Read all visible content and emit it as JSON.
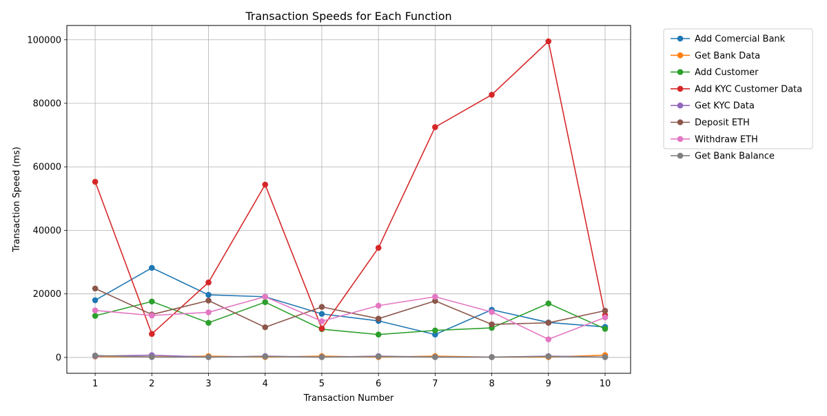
{
  "chart_data": {
    "type": "line",
    "title": "Transaction Speeds for Each Function",
    "xlabel": "Transaction Number",
    "ylabel": "Transaction Speed (ms)",
    "x": [
      1,
      2,
      3,
      4,
      5,
      6,
      7,
      8,
      9,
      10
    ],
    "xlim": [
      0.5,
      10.45
    ],
    "ylim": [
      -5000,
      104500
    ],
    "yticks": [
      0,
      20000,
      40000,
      60000,
      80000,
      100000
    ],
    "grid": true,
    "legend_position": "outside-top-right",
    "series": [
      {
        "name": "Add Comercial Bank",
        "color": "#1f77b4",
        "values": [
          18000,
          28200,
          19700,
          19100,
          13700,
          11500,
          7200,
          15000,
          11000,
          9600
        ]
      },
      {
        "name": "Get Bank Data",
        "color": "#ff7f0e",
        "values": [
          300,
          200,
          400,
          100,
          400,
          100,
          400,
          100,
          100,
          700
        ]
      },
      {
        "name": "Add Customer",
        "color": "#2ca02c",
        "values": [
          13100,
          17600,
          10900,
          17400,
          8900,
          7200,
          8500,
          9300,
          17000,
          9000
        ]
      },
      {
        "name": "Add KYC Customer Data",
        "color": "#d62728",
        "values": [
          55300,
          7400,
          23600,
          54400,
          9100,
          34500,
          72500,
          82700,
          99500,
          13300
        ]
      },
      {
        "name": "Get KYC Data",
        "color": "#9467bd",
        "values": [
          400,
          700,
          100,
          400,
          100,
          400,
          100,
          100,
          400,
          100
        ]
      },
      {
        "name": "Deposit ETH",
        "color": "#8c564b",
        "values": [
          21700,
          13500,
          17900,
          9500,
          15900,
          12200,
          17800,
          10400,
          10900,
          14700
        ]
      },
      {
        "name": "Withdraw ETH",
        "color": "#e377c2",
        "values": [
          14800,
          13200,
          14200,
          19100,
          11400,
          16300,
          19100,
          14300,
          5700,
          12600
        ]
      },
      {
        "name": "Get Bank Balance",
        "color": "#7f7f7f",
        "values": [
          600,
          100,
          100,
          300,
          100,
          300,
          100,
          100,
          300,
          100
        ]
      }
    ]
  }
}
